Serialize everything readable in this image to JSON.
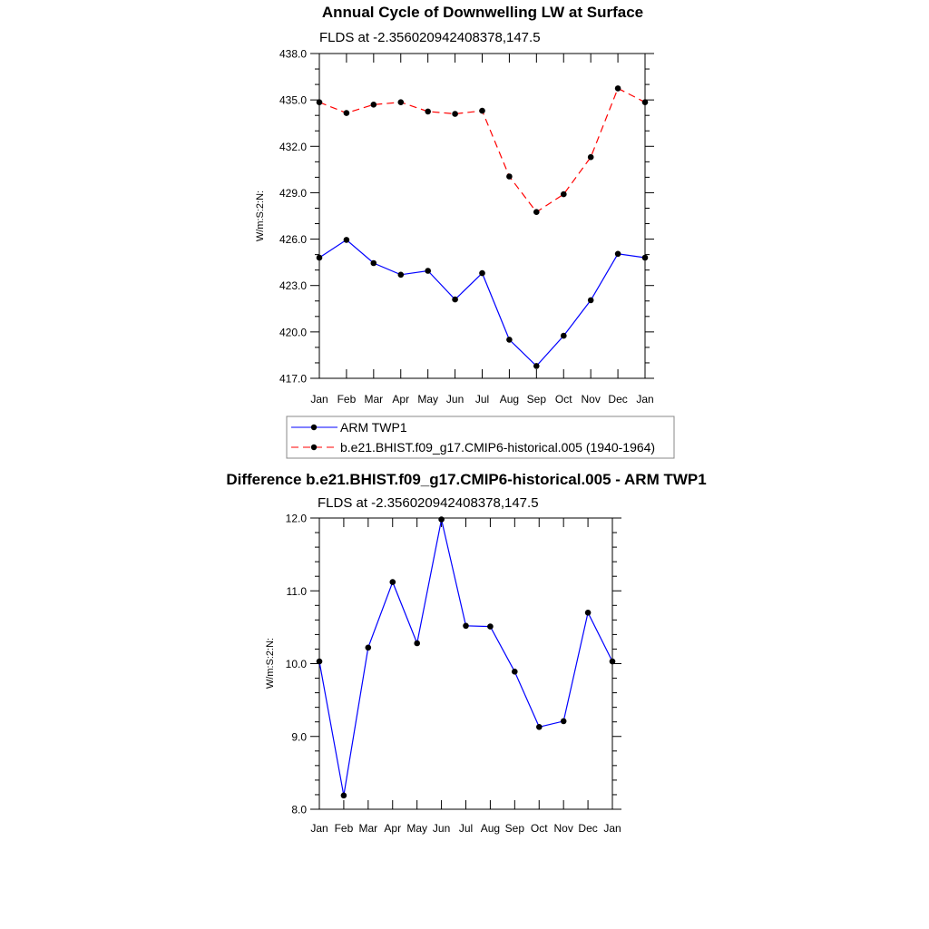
{
  "chart_data": [
    {
      "type": "line",
      "title": "Annual Cycle of Downwelling LW at Surface",
      "subtitle": "FLDS at -2.356020942408378,147.5",
      "ylabel": "W/m:S:2:N:",
      "xlabel": "",
      "categories": [
        "Jan",
        "Feb",
        "Mar",
        "Apr",
        "May",
        "Jun",
        "Jul",
        "Aug",
        "Sep",
        "Oct",
        "Nov",
        "Dec",
        "Jan"
      ],
      "ylim": [
        417.0,
        438.0
      ],
      "yticks": [
        "417.0",
        "420.0",
        "423.0",
        "426.0",
        "429.0",
        "432.0",
        "435.0",
        "438.0"
      ],
      "yticks_values": [
        417,
        420,
        423,
        426,
        429,
        432,
        435,
        438
      ],
      "series": [
        {
          "name": "ARM TWP1",
          "color": "#0000ff",
          "style": "solid",
          "values": [
            424.8,
            425.95,
            424.45,
            423.7,
            423.95,
            422.1,
            423.8,
            419.5,
            417.8,
            419.75,
            422.05,
            425.05,
            424.8
          ]
        },
        {
          "name": "b.e21.BHIST.f09_g17.CMIP6-historical.005 (1940-1964)",
          "color": "#ff0000",
          "style": "dashed",
          "values": [
            434.85,
            434.15,
            434.7,
            434.85,
            434.25,
            434.1,
            434.3,
            430.05,
            427.75,
            428.9,
            431.3,
            435.75,
            434.85
          ]
        }
      ],
      "legend_position": "bottom"
    },
    {
      "type": "line",
      "title": "Difference b.e21.BHIST.f09_g17.CMIP6-historical.005 - ARM TWP1",
      "subtitle": "FLDS at -2.356020942408378,147.5",
      "ylabel": "W/m:S:2:N:",
      "xlabel": "",
      "categories": [
        "Jan",
        "Feb",
        "Mar",
        "Apr",
        "May",
        "Jun",
        "Jul",
        "Aug",
        "Sep",
        "Oct",
        "Nov",
        "Dec",
        "Jan"
      ],
      "ylim": [
        8.0,
        12.0
      ],
      "yticks": [
        "8.0",
        "9.0",
        "10.0",
        "11.0",
        "12.0"
      ],
      "yticks_values": [
        8,
        9,
        10,
        11,
        12
      ],
      "series": [
        {
          "name": "Difference",
          "color": "#0000ff",
          "style": "solid",
          "values": [
            10.03,
            8.19,
            10.22,
            11.12,
            10.28,
            11.98,
            10.52,
            10.51,
            9.89,
            9.13,
            9.21,
            10.7,
            10.03
          ]
        }
      ]
    }
  ]
}
